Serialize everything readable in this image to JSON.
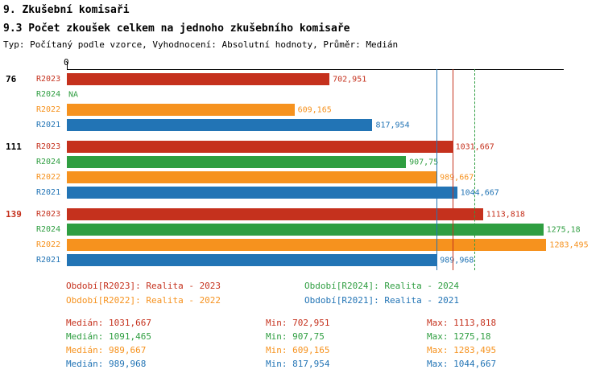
{
  "header": {
    "title": "9. Zkušební komisaři",
    "subtitle": "9.3 Počet zkoušek celkem na jednoho zkušebního komisaře",
    "meta": "Typ: Počítaný podle vzorce, Vyhodnocení: Absolutní hodnoty, Průměr: Medián"
  },
  "colors": {
    "R2023": "#c5311d",
    "R2024": "#2f9e41",
    "R2022": "#f6921e",
    "R2021": "#2274b5",
    "black": "#000000"
  },
  "axis": {
    "zero_label": "0"
  },
  "chart_data": {
    "type": "bar",
    "orientation": "horizontal",
    "title": "9.3 Počet zkoušek celkem na jednoho zkušebního komisaře",
    "xlabel": "",
    "ylabel": "",
    "xlim": [
      0,
      1330
    ],
    "x_max": 1330,
    "series_order": [
      "R2023",
      "R2024",
      "R2022",
      "R2021"
    ],
    "groups": [
      {
        "group_label": "76",
        "group_label_color": "#000000",
        "bars": [
          {
            "series": "R2023",
            "value": 702.951,
            "display": "702,951"
          },
          {
            "series": "R2024",
            "value": null,
            "display": "NA"
          },
          {
            "series": "R2022",
            "value": 609.165,
            "display": "609,165"
          },
          {
            "series": "R2021",
            "value": 817.954,
            "display": "817,954"
          }
        ]
      },
      {
        "group_label": "111",
        "group_label_color": "#000000",
        "bars": [
          {
            "series": "R2023",
            "value": 1031.667,
            "display": "1031,667"
          },
          {
            "series": "R2024",
            "value": 907.75,
            "display": "907,75"
          },
          {
            "series": "R2022",
            "value": 989.667,
            "display": "989,667"
          },
          {
            "series": "R2021",
            "value": 1044.667,
            "display": "1044,667"
          }
        ]
      },
      {
        "group_label": "139",
        "group_label_color": "#c5311d",
        "bars": [
          {
            "series": "R2023",
            "value": 1113.818,
            "display": "1113,818"
          },
          {
            "series": "R2024",
            "value": 1275.18,
            "display": "1275,18"
          },
          {
            "series": "R2022",
            "value": 1283.495,
            "display": "1283,495"
          },
          {
            "series": "R2021",
            "value": 989.968,
            "display": "989,968"
          }
        ]
      }
    ],
    "median_lines": [
      {
        "series": "R2022",
        "value": 989.667,
        "style": "dashed"
      },
      {
        "series": "R2021",
        "value": 989.968,
        "style": "solid"
      },
      {
        "series": "R2023",
        "value": 1031.667,
        "style": "solid"
      },
      {
        "series": "R2024",
        "value": 1091.465,
        "style": "dashed"
      }
    ]
  },
  "legend": [
    {
      "series": "R2023",
      "text": "Období[R2023]: Realita - 2023"
    },
    {
      "series": "R2024",
      "text": "Období[R2024]: Realita - 2024"
    },
    {
      "series": "R2022",
      "text": "Období[R2022]: Realita - 2022"
    },
    {
      "series": "R2021",
      "text": "Období[R2021]: Realita - 2021"
    }
  ],
  "stats": [
    {
      "series": "R2023",
      "median": "Medián: 1031,667",
      "min": "Min: 702,951",
      "max": "Max: 1113,818"
    },
    {
      "series": "R2024",
      "median": "Medián: 1091,465",
      "min": "Min: 907,75",
      "max": "Max: 1275,18"
    },
    {
      "series": "R2022",
      "median": "Medián: 989,667",
      "min": "Min: 609,165",
      "max": "Max: 1283,495"
    },
    {
      "series": "R2021",
      "median": "Medián: 989,968",
      "min": "Min: 817,954",
      "max": "Max: 1044,667"
    }
  ]
}
